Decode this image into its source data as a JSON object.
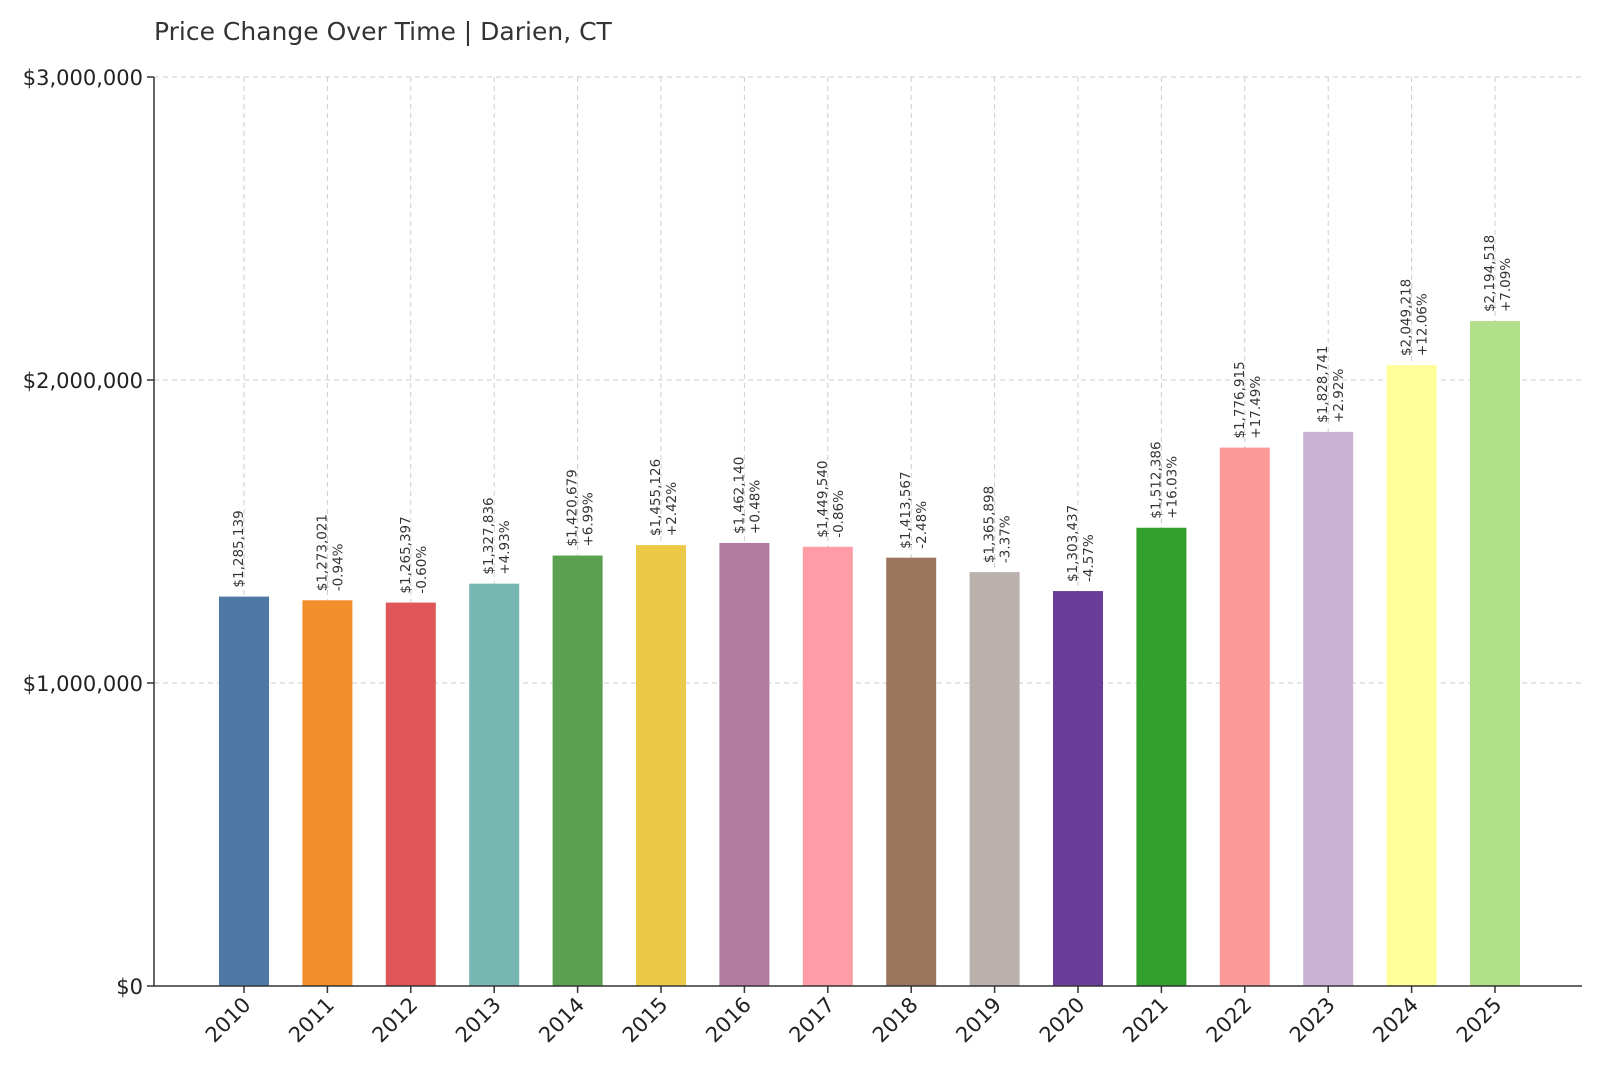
{
  "chart_data": {
    "type": "bar",
    "title": "Price Change Over Time | Darien, CT",
    "xlabel": "",
    "ylabel": "",
    "ylim": [
      0,
      3000000
    ],
    "y_ticks": [
      0,
      1000000,
      2000000,
      3000000
    ],
    "y_tick_labels": [
      "$0",
      "$1,000,000",
      "$2,000,000",
      "$3,000,000"
    ],
    "grid": true,
    "categories": [
      "2010",
      "2011",
      "2012",
      "2013",
      "2014",
      "2015",
      "2016",
      "2017",
      "2018",
      "2019",
      "2020",
      "2021",
      "2022",
      "2023",
      "2024",
      "2025"
    ],
    "values": [
      1285139,
      1273021,
      1265397,
      1327836,
      1420679,
      1455126,
      1462140,
      1449540,
      1413567,
      1365898,
      1303437,
      1512386,
      1776915,
      1828741,
      2049218,
      2194518
    ],
    "value_labels": [
      "$1,285,139",
      "$1,273,021",
      "$1,265,397",
      "$1,327,836",
      "$1,420,679",
      "$1,455,126",
      "$1,462,140",
      "$1,449,540",
      "$1,413,567",
      "$1,365,898",
      "$1,303,437",
      "$1,512,386",
      "$1,776,915",
      "$1,828,741",
      "$2,049,218",
      "$2,194,518"
    ],
    "change_labels": [
      "",
      "-0.94%",
      "-0.60%",
      "+4.93%",
      "+6.99%",
      "+2.42%",
      "+0.48%",
      "-0.86%",
      "-2.48%",
      "-3.37%",
      "-4.57%",
      "+16.03%",
      "+17.49%",
      "+2.92%",
      "+12.06%",
      "+7.09%"
    ],
    "colors": [
      "#4e79a7",
      "#f28e2b",
      "#e15759",
      "#76b7b2",
      "#59a14f",
      "#edc948",
      "#b07aa1",
      "#ff9da7",
      "#9c755f",
      "#bab0ac",
      "#6a3d9a",
      "#33a02c",
      "#fb9a99",
      "#cab2d6",
      "#ffff99",
      "#b2df8a"
    ]
  }
}
